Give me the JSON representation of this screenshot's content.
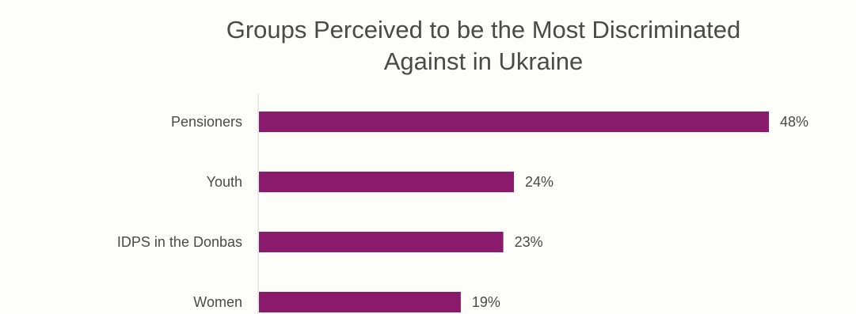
{
  "chart_data": {
    "type": "bar",
    "orientation": "horizontal",
    "title_lines": [
      "Groups Perceived to be the Most Discriminated",
      "Against in Ukraine"
    ],
    "categories": [
      "Pensioners",
      "Youth",
      "IDPS in the Donbas",
      "Women"
    ],
    "values": [
      48,
      24,
      23,
      19
    ],
    "value_labels": [
      "48%",
      "24%",
      "23%",
      "19%"
    ],
    "xlim": [
      0,
      48
    ],
    "grid": false,
    "legend": "none",
    "bar_color": "#8a1a6c",
    "axis_color": "#d7d7d7",
    "text_color": "#4a4a4a"
  }
}
